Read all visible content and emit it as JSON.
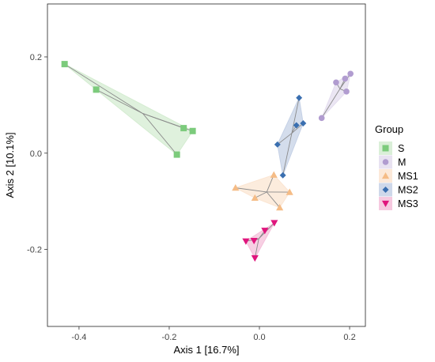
{
  "chart_data": {
    "type": "scatter",
    "title": "",
    "xlabel": "Axis 1 [16.7%]",
    "ylabel": "Axis 2 [10.1%]",
    "xlim": [
      -0.47,
      0.235
    ],
    "ylim": [
      -0.36,
      0.31
    ],
    "xticks": [
      -0.4,
      -0.2,
      0.0,
      0.2
    ],
    "xtick_labels": [
      "-0.4",
      "-0.2",
      "0.0",
      "0.2"
    ],
    "yticks": [
      -0.2,
      0.0,
      0.2
    ],
    "ytick_labels": [
      "-0.2",
      "0.0",
      "0.2"
    ],
    "grid": false,
    "legend_position": "right",
    "legend_title": "Group",
    "series": [
      {
        "name": "S",
        "marker": "square",
        "color": "#7ccb7c",
        "fill": "#d4ecd1",
        "points": [
          [
            -0.432,
            0.185
          ],
          [
            -0.362,
            0.132
          ],
          [
            -0.183,
            -0.003
          ],
          [
            -0.168,
            0.052
          ],
          [
            -0.148,
            0.046
          ]
        ]
      },
      {
        "name": "M",
        "marker": "circle",
        "color": "#b19cd0",
        "fill": "#e4ddef",
        "points": [
          [
            0.138,
            0.073
          ],
          [
            0.17,
            0.147
          ],
          [
            0.19,
            0.155
          ],
          [
            0.202,
            0.165
          ],
          [
            0.193,
            0.128
          ]
        ]
      },
      {
        "name": "MS1",
        "marker": "triangle-up",
        "color": "#f5bc86",
        "fill": "#fbe5d2",
        "points": [
          [
            -0.053,
            -0.072
          ],
          [
            -0.01,
            -0.093
          ],
          [
            0.032,
            -0.045
          ],
          [
            0.067,
            -0.081
          ],
          [
            0.045,
            -0.113
          ]
        ]
      },
      {
        "name": "MS2",
        "marker": "diamond",
        "color": "#3a6fb0",
        "fill": "#c5d1e6",
        "points": [
          [
            0.04,
            0.018
          ],
          [
            0.052,
            -0.046
          ],
          [
            0.082,
            0.058
          ],
          [
            0.088,
            0.115
          ],
          [
            0.097,
            0.062
          ]
        ]
      },
      {
        "name": "MS3",
        "marker": "triangle-down",
        "color": "#e0157d",
        "fill": "#f4c0da",
        "points": [
          [
            -0.03,
            -0.183
          ],
          [
            -0.012,
            -0.182
          ],
          [
            -0.01,
            -0.218
          ],
          [
            0.012,
            -0.161
          ],
          [
            0.033,
            -0.145
          ]
        ]
      }
    ]
  }
}
